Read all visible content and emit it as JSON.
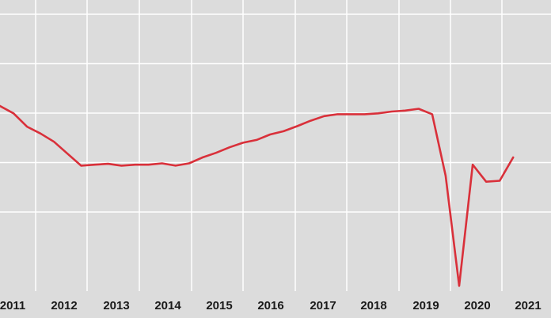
{
  "chart_data": {
    "type": "line",
    "title": "",
    "xlabel": "",
    "ylabel": "",
    "grid": true,
    "legend": "none",
    "x_ticks": [
      "2011",
      "2012",
      "2013",
      "2014",
      "2015",
      "2016",
      "2017",
      "2018",
      "2019",
      "2020",
      "2021"
    ],
    "y_gridlines": 5,
    "xlim": [
      2010.95,
      2021.15
    ],
    "ylim": [
      0,
      6
    ],
    "series": [
      {
        "color": "#d9303a",
        "points": [
          {
            "x": 2010.95,
            "y": 4.0
          },
          {
            "x": 2011.2,
            "y": 3.84
          },
          {
            "x": 2011.45,
            "y": 3.55
          },
          {
            "x": 2011.7,
            "y": 3.4
          },
          {
            "x": 2011.95,
            "y": 3.22
          },
          {
            "x": 2012.2,
            "y": 2.96
          },
          {
            "x": 2012.45,
            "y": 2.7
          },
          {
            "x": 2012.7,
            "y": 2.72
          },
          {
            "x": 2012.95,
            "y": 2.74
          },
          {
            "x": 2013.2,
            "y": 2.7
          },
          {
            "x": 2013.45,
            "y": 2.72
          },
          {
            "x": 2013.7,
            "y": 2.72
          },
          {
            "x": 2013.95,
            "y": 2.75
          },
          {
            "x": 2014.2,
            "y": 2.7
          },
          {
            "x": 2014.45,
            "y": 2.75
          },
          {
            "x": 2014.7,
            "y": 2.88
          },
          {
            "x": 2014.95,
            "y": 2.98
          },
          {
            "x": 2015.2,
            "y": 3.1
          },
          {
            "x": 2015.45,
            "y": 3.2
          },
          {
            "x": 2015.7,
            "y": 3.26
          },
          {
            "x": 2015.95,
            "y": 3.38
          },
          {
            "x": 2016.2,
            "y": 3.45
          },
          {
            "x": 2016.45,
            "y": 3.56
          },
          {
            "x": 2016.7,
            "y": 3.68
          },
          {
            "x": 2016.95,
            "y": 3.78
          },
          {
            "x": 2017.2,
            "y": 3.82
          },
          {
            "x": 2017.45,
            "y": 3.82
          },
          {
            "x": 2017.7,
            "y": 3.82
          },
          {
            "x": 2017.95,
            "y": 3.84
          },
          {
            "x": 2018.2,
            "y": 3.88
          },
          {
            "x": 2018.45,
            "y": 3.9
          },
          {
            "x": 2018.7,
            "y": 3.94
          },
          {
            "x": 2018.95,
            "y": 3.82
          },
          {
            "x": 2019.2,
            "y": 2.48
          },
          {
            "x": 2019.45,
            "y": 0.08
          },
          {
            "x": 2019.7,
            "y": 2.72
          },
          {
            "x": 2019.95,
            "y": 2.35
          },
          {
            "x": 2020.2,
            "y": 2.37
          },
          {
            "x": 2020.45,
            "y": 2.88
          }
        ]
      }
    ]
  }
}
